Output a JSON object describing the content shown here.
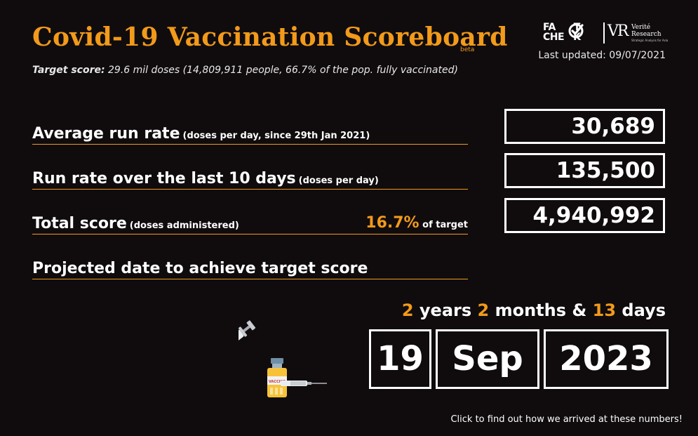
{
  "header": {
    "title": "Covid-19 Vaccination Scoreboard",
    "beta": "beta",
    "target_label": "Target score:",
    "target_text": " 29.6 mil doses (14,809,911 people, 66.7% of the pop. fully vaccinated)",
    "last_updated": "Last updated: 09/07/2021"
  },
  "logos": {
    "factcheck_line1": "FA",
    "factcheck_line2": "CHE",
    "factcheck_suffix1": "T",
    "factcheck_suffix2": "K",
    "vr_monogram": "VR",
    "vr_name_line1": "Verité",
    "vr_name_line2": "Research",
    "vr_tagline": "Strategic Analysis for Asia"
  },
  "metrics": [
    {
      "label": "Average run rate",
      "sub": "(doses per day, since 29th Jan 2021)",
      "value": "30,689"
    },
    {
      "label": "Run rate over the last 10 days",
      "sub": "(doses  per day)",
      "value": "135,500"
    },
    {
      "label": "Total score",
      "sub": "(doses administered)",
      "percent": "16.7%",
      "percent_suffix": "of target",
      "value": "4,940,992"
    },
    {
      "label": "Projected date to achieve target score"
    }
  ],
  "projection": {
    "years": "2",
    "years_label": "years",
    "months": "2",
    "months_label": "months &",
    "days": "13",
    "days_label": "days",
    "day": "19",
    "month": "Sep",
    "year": "2023"
  },
  "footer": {
    "cta": "Click to find out how we arrived at these numbers!"
  },
  "colors": {
    "accent": "#f29a1a",
    "background": "#100c0e",
    "text": "#ffffff"
  },
  "icons": [
    "check-icon",
    "syringe-icon",
    "vaccine-vial-icon"
  ]
}
